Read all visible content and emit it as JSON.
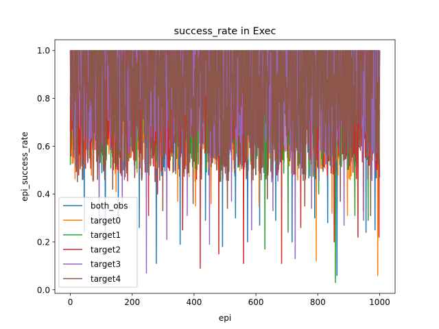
{
  "chart_data": {
    "type": "line",
    "title": "success_rate in Exec",
    "xlabel": "epi",
    "ylabel": "epi_success_rate",
    "xlim": [
      -50,
      1050
    ],
    "ylim": [
      -0.015,
      1.045
    ],
    "xticks": [
      0,
      200,
      400,
      600,
      800,
      1000
    ],
    "yticks": [
      0.0,
      0.2,
      0.4,
      0.6,
      0.8,
      1.0
    ],
    "xtick_labels": [
      "0",
      "200",
      "400",
      "600",
      "800",
      "1000"
    ],
    "ytick_labels": [
      "0.0",
      "0.2",
      "0.4",
      "0.6",
      "0.8",
      "1.0"
    ],
    "grid": false,
    "legend_position": "lower-left",
    "x": {
      "start": 0,
      "end": 1000,
      "step": 1
    },
    "series": [
      {
        "name": "both_obs",
        "color": "#1f77b4",
        "min_value": 0.04,
        "max_value": 1.0,
        "typical_low": 0.55,
        "dips": [
          [
            45,
            0.24
          ],
          [
            113,
            0.22
          ],
          [
            155,
            0.3
          ],
          [
            223,
            0.26
          ],
          [
            278,
            0.11
          ],
          [
            355,
            0.19
          ],
          [
            437,
            0.29
          ],
          [
            492,
            0.18
          ],
          [
            534,
            0.3
          ],
          [
            573,
            0.2
          ],
          [
            612,
            0.27
          ],
          [
            664,
            0.29
          ],
          [
            717,
            0.2
          ],
          [
            790,
            0.3
          ],
          [
            832,
            0.28
          ],
          [
            862,
            0.06
          ],
          [
            956,
            0.24
          ],
          [
            985,
            0.25
          ]
        ]
      },
      {
        "name": "target0",
        "color": "#ff7f0e",
        "min_value": 0.06,
        "max_value": 1.0,
        "typical_low": 0.5,
        "dips": [
          [
            75,
            0.46
          ],
          [
            148,
            0.41
          ],
          [
            347,
            0.37
          ],
          [
            405,
            0.35
          ],
          [
            455,
            0.36
          ],
          [
            610,
            0.35
          ],
          [
            795,
            0.12
          ],
          [
            846,
            0.32
          ],
          [
            896,
            0.31
          ],
          [
            947,
            0.33
          ],
          [
            994,
            0.06
          ]
        ]
      },
      {
        "name": "target1",
        "color": "#2ca02c",
        "min_value": 0.03,
        "max_value": 1.0,
        "typical_low": 0.5,
        "dips": [
          [
            31,
            0.67
          ],
          [
            62,
            0.55
          ],
          [
            196,
            0.6
          ],
          [
            465,
            0.55
          ],
          [
            547,
            0.55
          ],
          [
            629,
            0.17
          ],
          [
            704,
            0.24
          ],
          [
            803,
            0.4
          ],
          [
            857,
            0.03
          ],
          [
            920,
            0.31
          ],
          [
            963,
            0.29
          ]
        ]
      },
      {
        "name": "target2",
        "color": "#d62728",
        "min_value": 0.08,
        "max_value": 1.0,
        "typical_low": 0.5,
        "dips": [
          [
            27,
            0.48
          ],
          [
            253,
            0.31
          ],
          [
            282,
            0.4
          ],
          [
            363,
            0.25
          ],
          [
            420,
            0.09
          ],
          [
            480,
            0.15
          ],
          [
            560,
            0.11
          ],
          [
            683,
            0.11
          ],
          [
            745,
            0.26
          ],
          [
            853,
            0.2
          ],
          [
            930,
            0.22
          ],
          [
            998,
            0.22
          ]
        ]
      },
      {
        "name": "target3",
        "color": "#9467bd",
        "min_value": 0.06,
        "max_value": 1.0,
        "typical_low": 0.55,
        "dips": [
          [
            93,
            0.29
          ],
          [
            168,
            0.35
          ],
          [
            246,
            0.07
          ],
          [
            312,
            0.21
          ],
          [
            378,
            0.31
          ],
          [
            450,
            0.19
          ],
          [
            521,
            0.37
          ],
          [
            586,
            0.25
          ],
          [
            655,
            0.33
          ],
          [
            727,
            0.13
          ],
          [
            780,
            0.34
          ],
          [
            885,
            0.27
          ],
          [
            948,
            0.29
          ]
        ]
      },
      {
        "name": "target4",
        "color": "#8c564b",
        "min_value": 0.15,
        "max_value": 1.0,
        "typical_low": 0.45,
        "dips": [
          [
            137,
            0.42
          ],
          [
            299,
            0.33
          ],
          [
            397,
            0.36
          ],
          [
            508,
            0.34
          ],
          [
            637,
            0.38
          ],
          [
            758,
            0.35
          ],
          [
            873,
            0.37
          ],
          [
            971,
            0.31
          ]
        ]
      }
    ]
  }
}
